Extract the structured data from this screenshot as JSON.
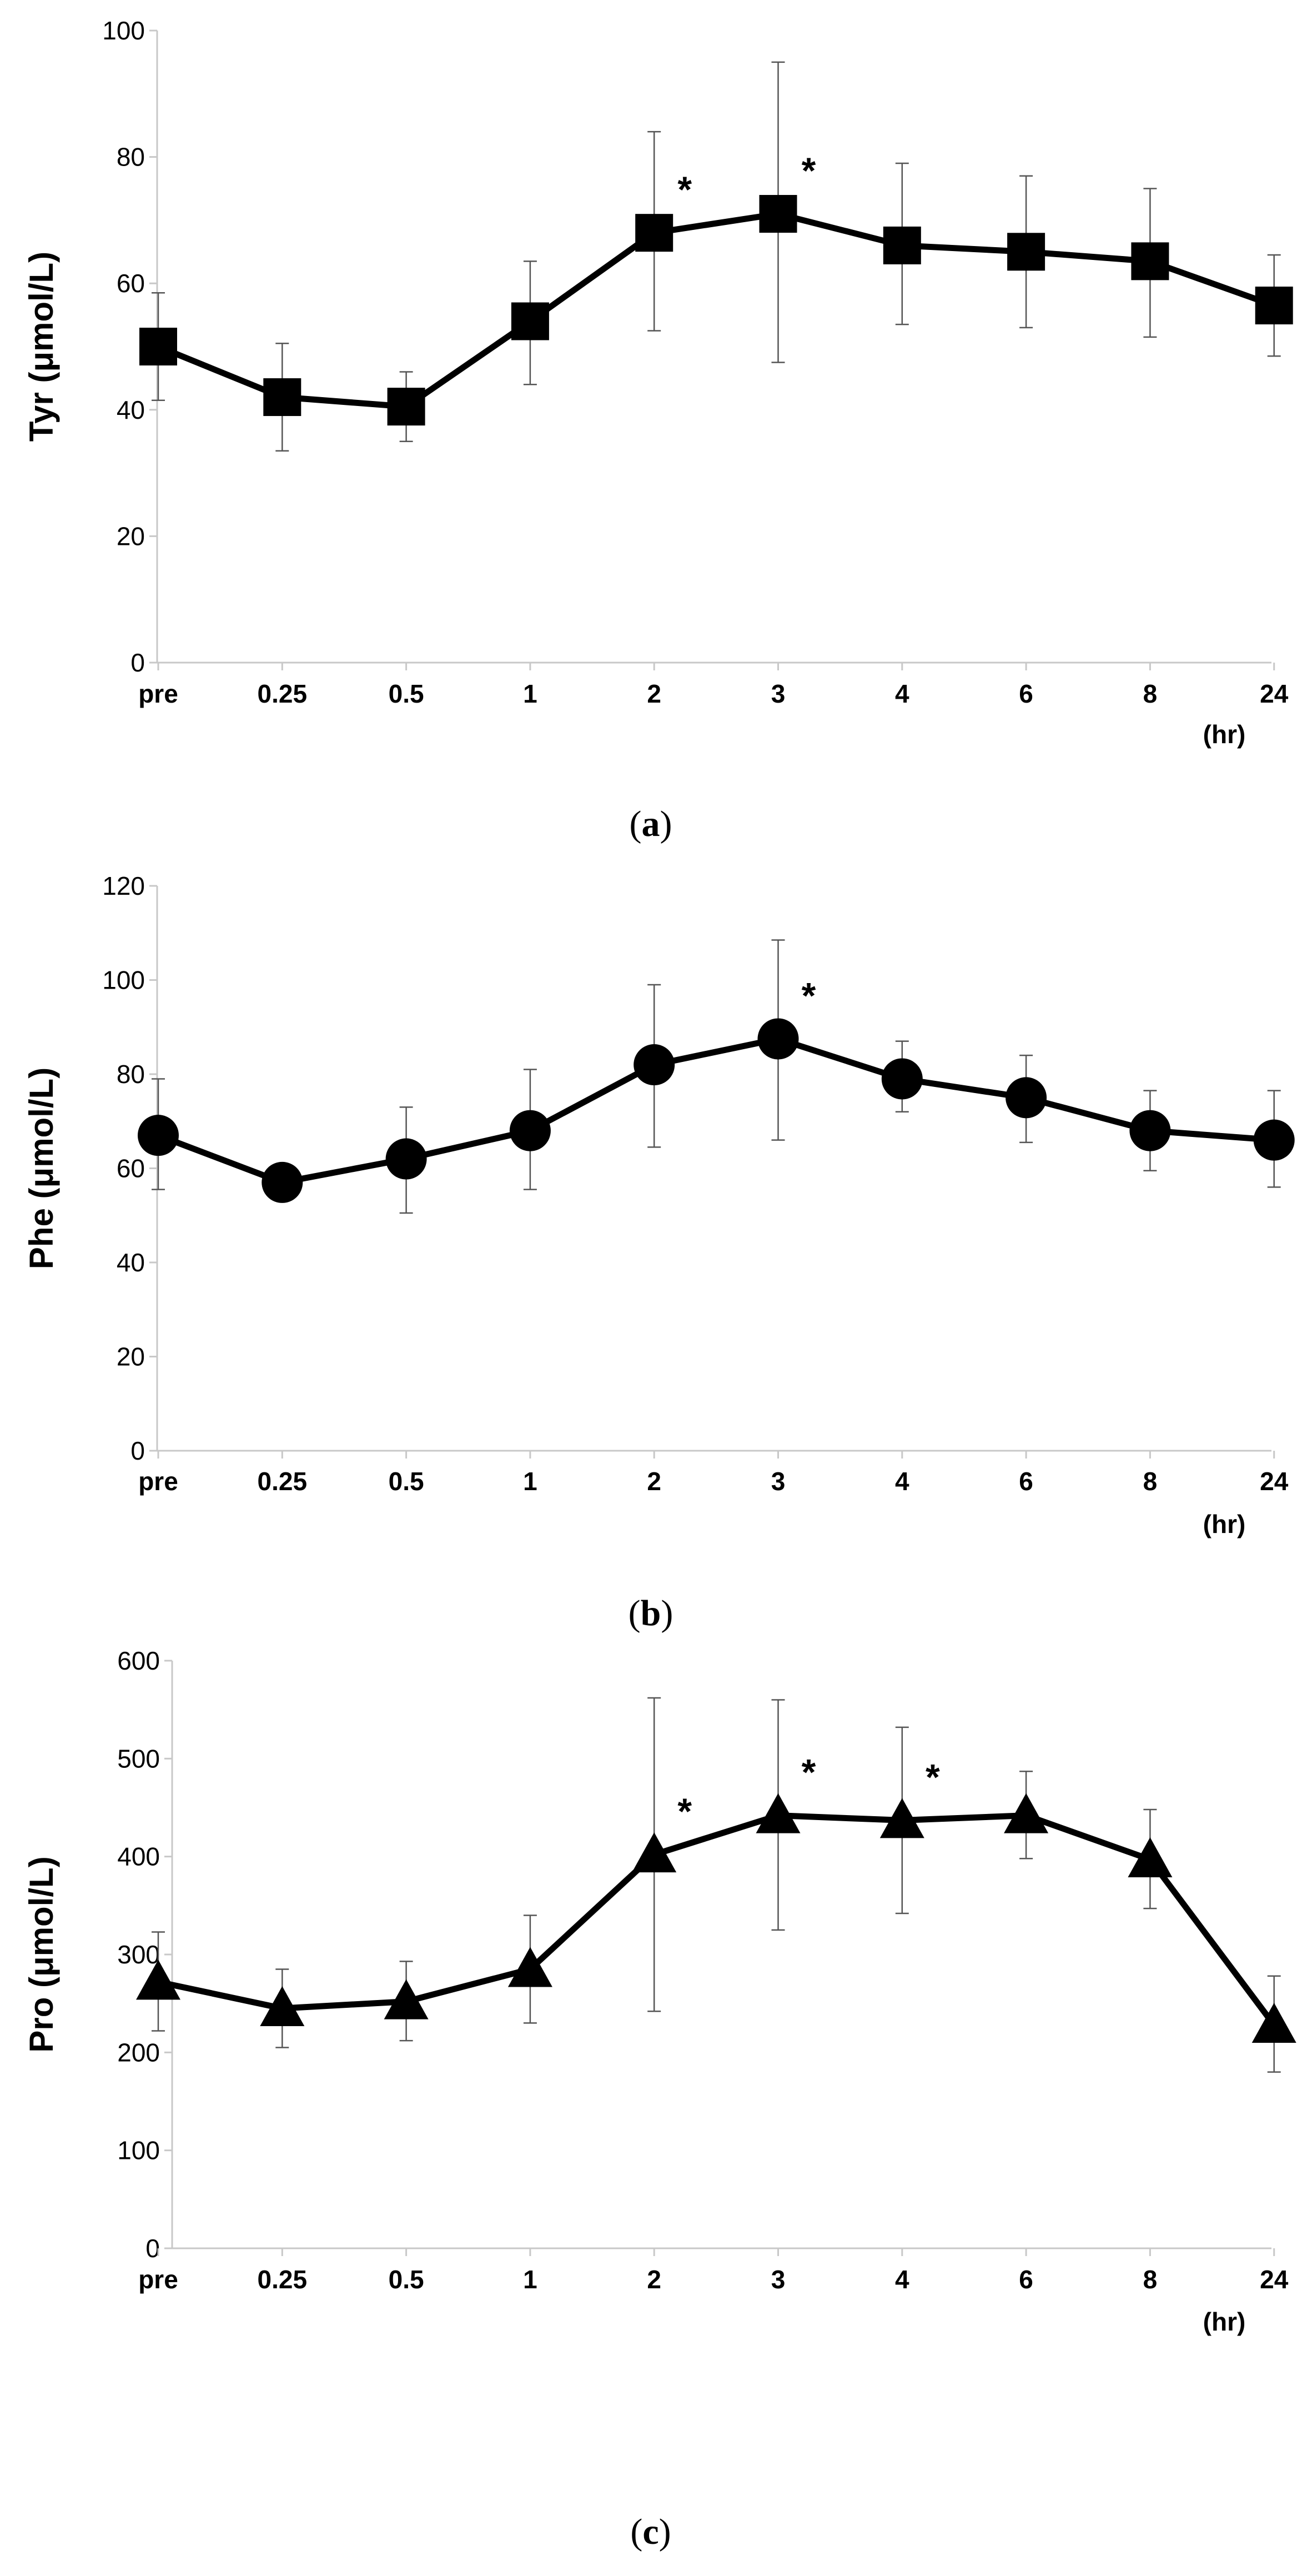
{
  "chart_data": [
    {
      "type": "line",
      "panel_label": "a",
      "categories": [
        "pre",
        "0.25",
        "0.5",
        "1",
        "2",
        "3",
        "4",
        "6",
        "8",
        "24"
      ],
      "x_unit": "(hr)",
      "ylabel": "Tyr (μmol/L)",
      "ylim": [
        0,
        100
      ],
      "yticks": [
        0,
        20,
        40,
        60,
        80,
        100
      ],
      "marker": "square",
      "series": [
        {
          "name": "Tyr",
          "values": [
            50,
            42,
            40.5,
            54,
            68,
            71,
            66,
            65,
            63.5,
            56.5
          ],
          "err_upper": [
            58.5,
            50.5,
            46,
            63.5,
            84,
            95,
            79,
            77,
            75,
            64.5
          ],
          "err_lower": [
            41.5,
            33.5,
            35,
            44,
            52.5,
            47.5,
            53.5,
            53,
            51.5,
            48.5
          ]
        }
      ],
      "significant": [
        "2",
        "3"
      ],
      "significance_marker": "*"
    },
    {
      "type": "line",
      "panel_label": "b",
      "categories": [
        "pre",
        "0.25",
        "0.5",
        "1",
        "2",
        "3",
        "4",
        "6",
        "8",
        "24"
      ],
      "x_unit": "(hr)",
      "ylabel": "Phe (μmol/L)",
      "ylim": [
        0,
        120
      ],
      "yticks": [
        0,
        20,
        40,
        60,
        80,
        100,
        120
      ],
      "marker": "circle",
      "series": [
        {
          "name": "Phe",
          "values": [
            67,
            57,
            62,
            68,
            82,
            87.5,
            79,
            75,
            68,
            66
          ],
          "err_upper": [
            79,
            57,
            73,
            81,
            99,
            108.5,
            87,
            84,
            76.5,
            76.5
          ],
          "err_lower": [
            55.5,
            57,
            50.5,
            55.5,
            64.5,
            66,
            72,
            65.5,
            59.5,
            56
          ]
        }
      ],
      "significant": [
        "3"
      ],
      "significance_marker": "*"
    },
    {
      "type": "line",
      "panel_label": "c",
      "categories": [
        "pre",
        "0.25",
        "0.5",
        "1",
        "2",
        "3",
        "4",
        "6",
        "8",
        "24"
      ],
      "x_unit": "(hr)",
      "ylabel": "Pro (μmol/L)",
      "ylim": [
        0,
        600
      ],
      "yticks": [
        0,
        100,
        200,
        300,
        400,
        500,
        600
      ],
      "marker": "triangle",
      "series": [
        {
          "name": "Pro",
          "values": [
            272,
            245,
            252,
            285,
            402,
            442,
            437,
            442,
            397,
            228
          ],
          "err_upper": [
            323,
            285,
            293,
            340,
            562,
            560,
            532,
            487,
            448,
            278
          ],
          "err_lower": [
            222,
            205,
            212,
            230,
            242,
            325,
            342,
            398,
            347,
            180
          ]
        }
      ],
      "significant": [
        "2",
        "3",
        "4"
      ],
      "significance_marker": "*"
    }
  ]
}
